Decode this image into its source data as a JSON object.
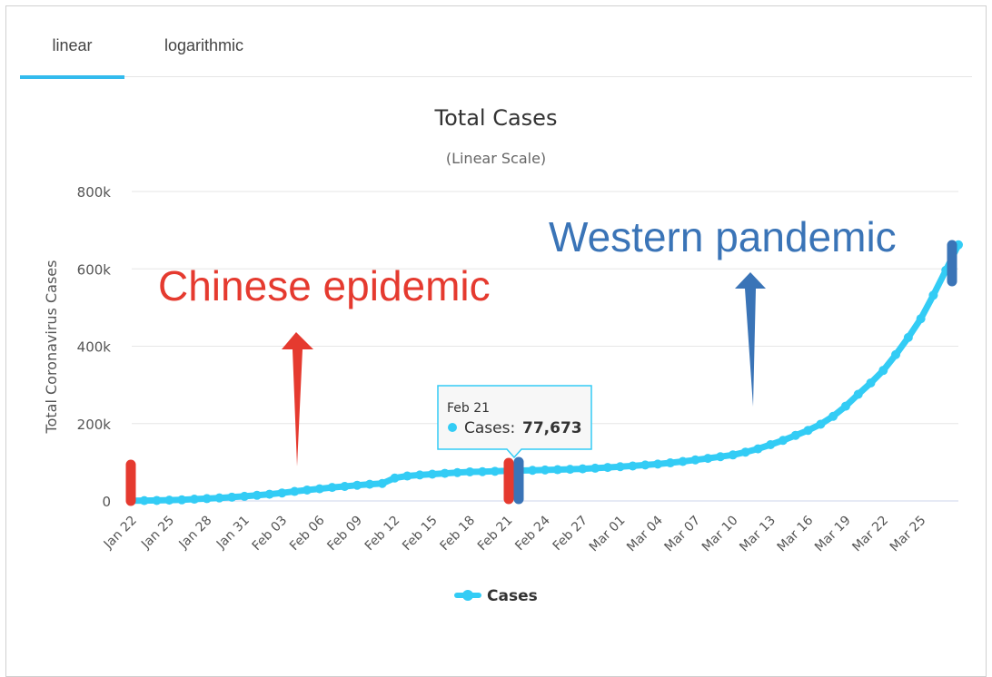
{
  "tabs": [
    {
      "label": "linear",
      "active": true
    },
    {
      "label": "logarithmic",
      "active": false
    }
  ],
  "colors": {
    "series": "#33ccf5",
    "china_marker": "#e53a2f",
    "west_marker": "#3a74b7",
    "grid": "#e6e6e6",
    "text": "#555555"
  },
  "chart_data": {
    "type": "line",
    "title": "Total Cases",
    "subtitle": "(Linear Scale)",
    "ylabel": "Total Coronavirus Cases",
    "xlabel": "",
    "ylim": [
      0,
      800000
    ],
    "y_ticks": [
      0,
      200000,
      400000,
      600000,
      800000
    ],
    "y_tick_labels": [
      "0",
      "200k",
      "400k",
      "600k",
      "800k"
    ],
    "grid": true,
    "legend": {
      "position": "bottom-center",
      "entries": [
        "Cases"
      ]
    },
    "x_tick_labels": [
      "Jan 22",
      "Jan 25",
      "Jan 28",
      "Jan 31",
      "Feb 03",
      "Feb 06",
      "Feb 09",
      "Feb 12",
      "Feb 15",
      "Feb 18",
      "Feb 21",
      "Feb 24",
      "Feb 27",
      "Mar 01",
      "Mar 04",
      "Mar 07",
      "Mar 10",
      "Mar 13",
      "Mar 16",
      "Mar 19",
      "Mar 22",
      "Mar 25"
    ],
    "x_start": "Jan 22",
    "x_end": "Mar 28",
    "series": [
      {
        "name": "Cases",
        "values": [
          580,
          845,
          1317,
          2015,
          2800,
          4581,
          6058,
          7813,
          9823,
          11950,
          14553,
          17391,
          20630,
          24545,
          28266,
          31439,
          34876,
          37552,
          40553,
          43099,
          45134,
          59287,
          64438,
          67100,
          69197,
          71329,
          73332,
          75184,
          75700,
          76677,
          77673,
          78651,
          79205,
          80087,
          80828,
          81820,
          83112,
          84615,
          86604,
          88585,
          90443,
          93016,
          95314,
          98425,
          102050,
          106099,
          109991,
          114381,
          118948,
          126214,
          134576,
          145483,
          156653,
          169593,
          182490,
          198234,
          218822,
          244933,
          275597,
          305036,
          337459,
          378287,
          422574,
          471035,
          531865,
          596366,
          662073
        ]
      }
    ],
    "tooltip": {
      "date": "Feb 21",
      "label": "Cases:",
      "value": "77,673"
    },
    "annotations": [
      {
        "text": "Chinese epidemic",
        "color": "#e53a2f"
      },
      {
        "text": "Western pandemic",
        "color": "#3a74b7"
      }
    ]
  }
}
